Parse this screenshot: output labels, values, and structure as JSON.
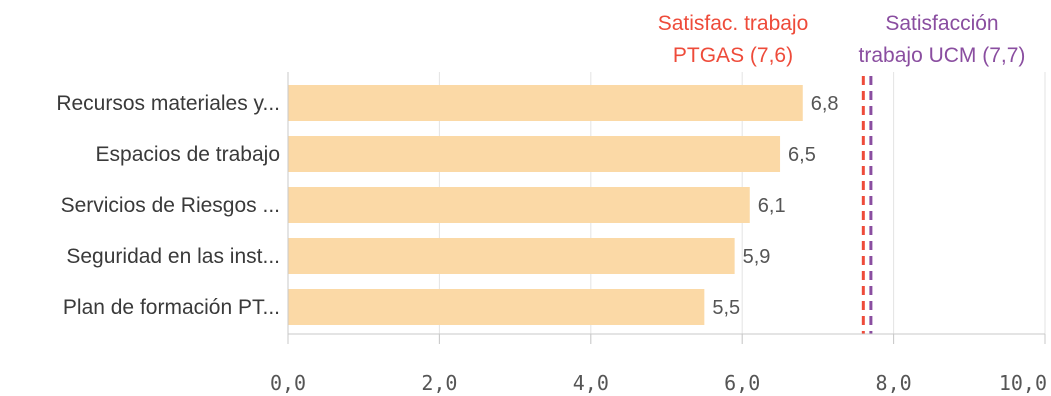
{
  "chart_data": {
    "type": "bar",
    "orientation": "horizontal",
    "categories": [
      "Recursos materiales y...",
      "Espacios de trabajo",
      "Servicios de Riesgos ...",
      "Seguridad en las inst...",
      "Plan de formación PT..."
    ],
    "values": [
      6.8,
      6.5,
      6.1,
      5.9,
      5.5
    ],
    "value_labels": [
      "6,8",
      "6,5",
      "6,1",
      "5,9",
      "5,5"
    ],
    "xlim": [
      0,
      10
    ],
    "x_ticks": [
      0,
      2,
      4,
      6,
      8,
      10
    ],
    "x_tick_labels": [
      "0,0",
      "2,0",
      "4,0",
      "6,0",
      "8,0",
      "10,0"
    ],
    "grid": true,
    "bar_color": "#fbd9a6",
    "reference_lines": [
      {
        "label_lines": [
          "Satisfac. trabajo",
          "PTGAS (7,6)"
        ],
        "value": 7.6,
        "color": "#ee4b3a"
      },
      {
        "label_lines": [
          "Satisfacción",
          "trabajo UCM (7,7)"
        ],
        "value": 7.7,
        "color": "#8a4ea0"
      }
    ]
  }
}
